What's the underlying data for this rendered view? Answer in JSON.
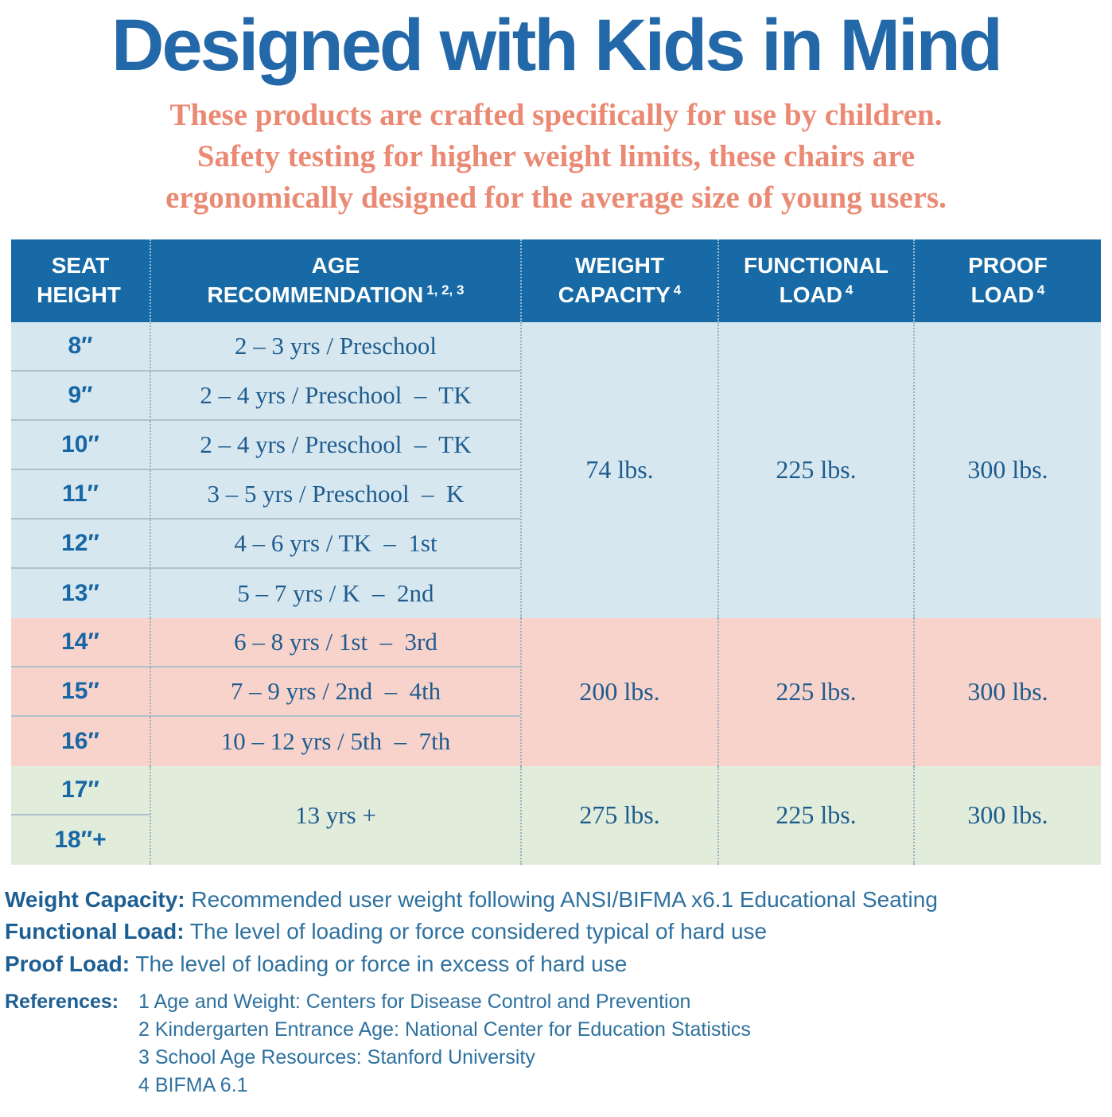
{
  "page": {
    "title": "Designed with Kids in Mind",
    "subtitle_lines": [
      "These products are crafted specifically for use by children.",
      "Safety testing for higher weight limits, these chairs are",
      "ergonomically designed for the average size of young users."
    ]
  },
  "colors": {
    "title_blue": "#2368A8",
    "subtitle_coral": "#EB8A74",
    "header_bg": "#176AA5",
    "row_blue": "#D7E7F0",
    "row_pink": "#F8D3CB",
    "row_green": "#E2ECDB",
    "cell_text_blue": "#1E5C8E",
    "footer_blue": "#2E719F"
  },
  "table": {
    "headers": [
      {
        "line1": "SEAT",
        "line2": "HEIGHT",
        "sup": ""
      },
      {
        "line1": "AGE",
        "line2": "RECOMMENDATION",
        "sup": "1, 2, 3"
      },
      {
        "line1": "WEIGHT",
        "line2": "CAPACITY",
        "sup": "4"
      },
      {
        "line1": "FUNCTIONAL",
        "line2": "LOAD",
        "sup": "4"
      },
      {
        "line1": "PROOF",
        "line2": "LOAD",
        "sup": "4"
      }
    ],
    "groups": [
      {
        "rows": [
          {
            "seat": "8″",
            "age": "2 – 3 yrs / Preschool"
          },
          {
            "seat": "9″",
            "age": "2 – 4 yrs / Preschool  –  TK"
          },
          {
            "seat": "10″",
            "age": "2 – 4 yrs / Preschool  –  TK"
          },
          {
            "seat": "11″",
            "age": "3 – 5 yrs / Preschool  –  K"
          },
          {
            "seat": "12″",
            "age": "4 – 6 yrs / TK  –  1st"
          },
          {
            "seat": "13″",
            "age": "5 – 7 yrs / K  –  2nd"
          }
        ],
        "weight_capacity": "74 lbs.",
        "functional_load": "225 lbs.",
        "proof_load": "300 lbs."
      },
      {
        "rows": [
          {
            "seat": "14″",
            "age": "6 – 8 yrs / 1st  –  3rd"
          },
          {
            "seat": "15″",
            "age": "7 – 9 yrs / 2nd  –  4th"
          },
          {
            "seat": "16″",
            "age": "10 – 12 yrs / 5th  –  7th"
          }
        ],
        "weight_capacity": "200 lbs.",
        "functional_load": "225 lbs.",
        "proof_load": "300 lbs."
      },
      {
        "rows": [
          {
            "seat": "17″"
          },
          {
            "seat": "18″+"
          }
        ],
        "age_merged": "13 yrs +",
        "weight_capacity": "275 lbs.",
        "functional_load": "225 lbs.",
        "proof_load": "300 lbs."
      }
    ]
  },
  "definitions": [
    {
      "label": "Weight Capacity:",
      "text": " Recommended user weight following ANSI/BIFMA x6.1 Educational Seating"
    },
    {
      "label": "Functional Load:",
      "text": " The level of loading or force considered typical of hard use"
    },
    {
      "label": "Proof Load:",
      "text": " The level of loading or force in excess of hard use"
    }
  ],
  "references": {
    "label": "References:",
    "items": [
      "1 Age and Weight: Centers for Disease Control and Prevention",
      "2 Kindergarten Entrance Age: National Center for Education Statistics",
      "3 School Age Resources: Stanford University",
      "4 BIFMA 6.1"
    ]
  }
}
